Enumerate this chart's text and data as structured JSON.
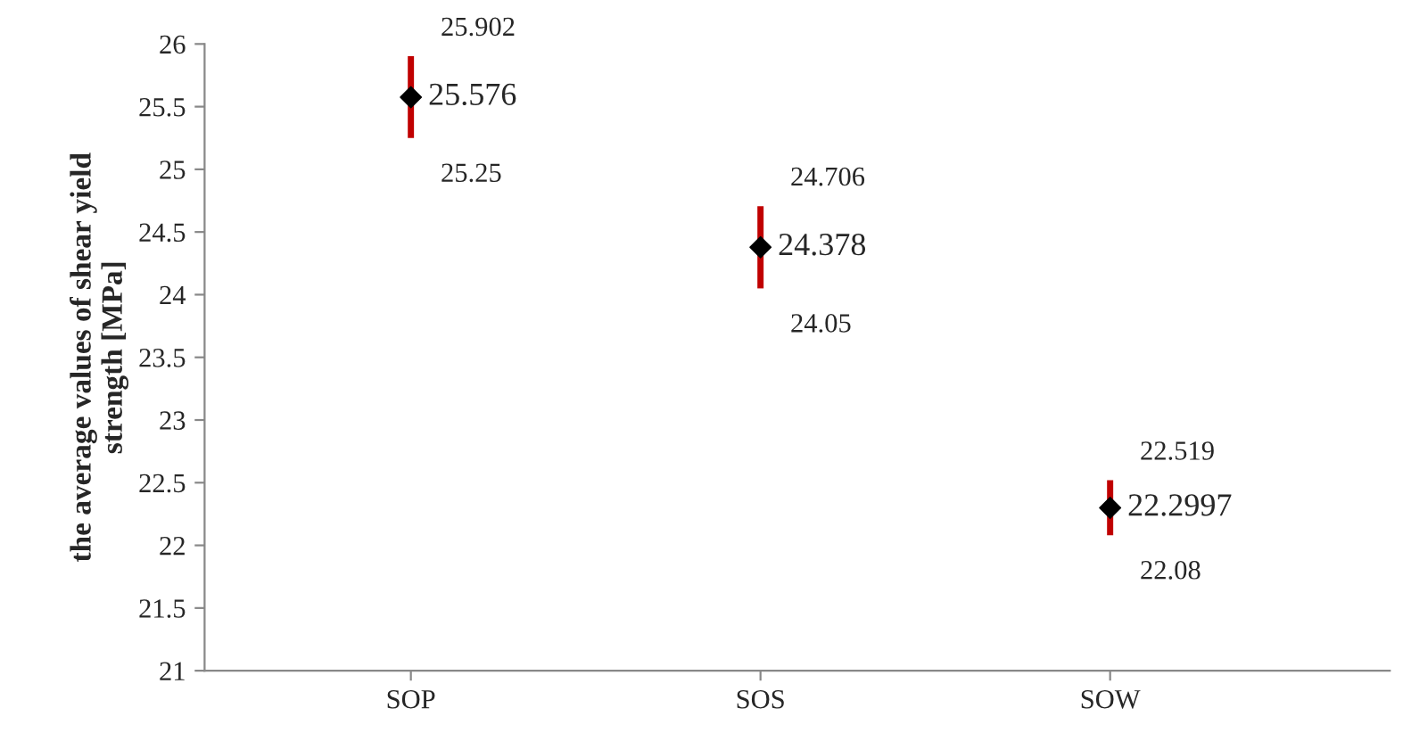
{
  "chart_data": {
    "type": "scatter",
    "ylabel": "the average values of shear yield\nstrength [MPa]",
    "categories": [
      "SOP",
      "SOS",
      "SOW"
    ],
    "series": [
      {
        "color": "#000000",
        "values": [
          25.576,
          24.378,
          22.2997
        ],
        "value_labels": [
          "25.576",
          "24.378",
          "22.2997"
        ],
        "errors": [
          [
            25.25,
            25.902
          ],
          [
            24.05,
            24.706
          ],
          [
            22.08,
            22.519
          ]
        ]
      }
    ],
    "annotations": [
      {
        "text": "25.902",
        "x": "SOP",
        "y": 25.902
      },
      {
        "text": "25.25",
        "x": "SOP",
        "y": 25.25
      },
      {
        "text": "24.706",
        "x": "SOS",
        "y": 24.706
      },
      {
        "text": "24.05",
        "x": "SOS",
        "y": 24.05
      },
      {
        "text": "22.519",
        "x": "SOW",
        "y": 22.519
      },
      {
        "text": "22.08",
        "x": "SOW",
        "y": 22.08
      }
    ],
    "ylim": [
      21,
      26
    ],
    "yticks": [
      21,
      21.5,
      22,
      22.5,
      23,
      23.5,
      24,
      24.5,
      25,
      25.5,
      26
    ],
    "grid": false,
    "legend": false,
    "marker": "diamond"
  }
}
